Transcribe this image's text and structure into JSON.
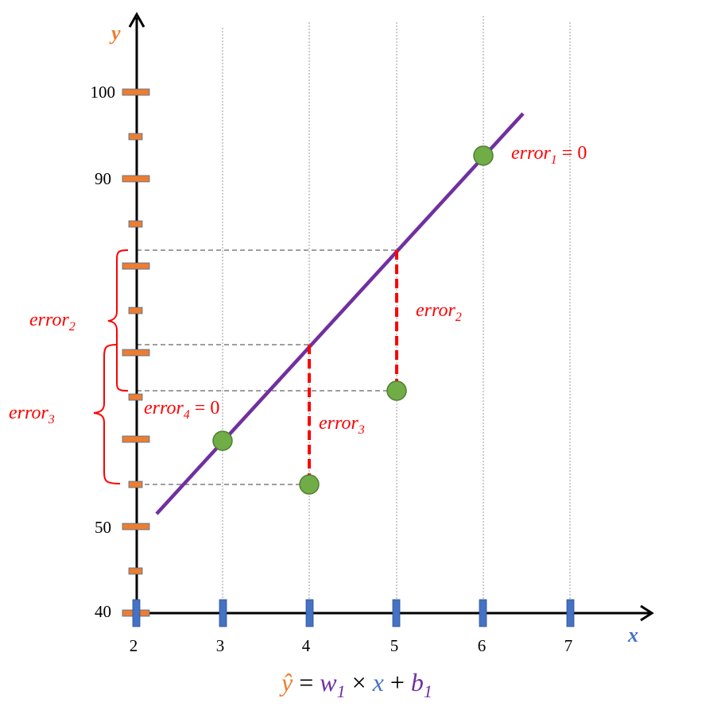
{
  "axes": {
    "y_title": "y",
    "x_title": "x",
    "y_labels": [
      "100",
      "90",
      "50",
      "40"
    ],
    "x_labels": [
      "2",
      "3",
      "4",
      "5",
      "6",
      "7"
    ]
  },
  "errors": {
    "e1": {
      "base": "error",
      "sub": "1",
      "tail": " = 0"
    },
    "e2_line": {
      "base": "error",
      "sub": "2"
    },
    "e2_bracket": {
      "base": "error",
      "sub": "2"
    },
    "e3_line": {
      "base": "error",
      "sub": "3"
    },
    "e3_bracket": {
      "base": "error",
      "sub": "3"
    },
    "e4": {
      "base": "error",
      "sub": "4",
      "tail": " = 0"
    }
  },
  "formula": {
    "yhat": "ŷ",
    "eq": " = ",
    "w": "w",
    "w_sub": "1",
    "times": " × ",
    "x": "x",
    "plus": " + ",
    "b": "b",
    "b_sub": "1"
  },
  "colors": {
    "y_axis_ticks": "#ed7d31",
    "x_axis_ticks": "#4472c4",
    "regression_line": "#7030a0",
    "points": "#70ad47",
    "errors": "#ff0000"
  }
}
